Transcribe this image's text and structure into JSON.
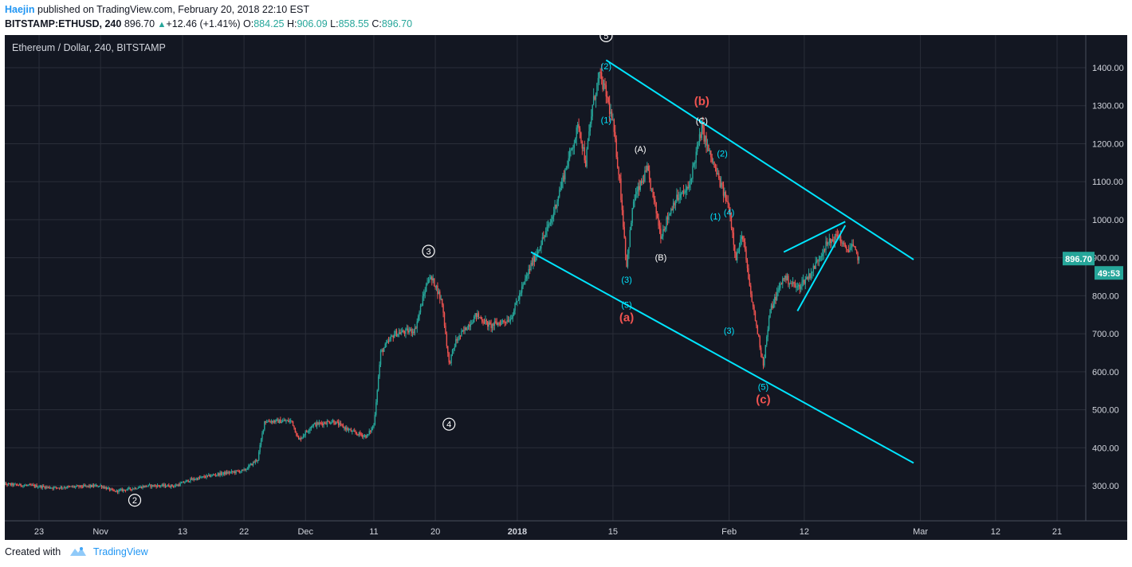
{
  "header": {
    "author": "Haejin",
    "published_text": "published on TradingView.com, February 20, 2018 22:10 EST",
    "symbol": "BITSTAMP:ETHUSD, 240",
    "last_price": "896.70",
    "change_arrow": "▲",
    "change": "+12.46 (+1.41%)",
    "ohlc": [
      {
        "key": "O:",
        "value": "884.25"
      },
      {
        "key": "H:",
        "value": "906.09"
      },
      {
        "key": "L:",
        "value": "858.55"
      },
      {
        "key": "C:",
        "value": "896.70"
      }
    ]
  },
  "footer": {
    "created_with": "Created with",
    "brand": "TradingView",
    "logo_icon": "tradingview-logo-icon"
  },
  "colors": {
    "background": "#131722",
    "grid": "#2a2e39",
    "up_candle": "#26a69a",
    "down_candle": "#ef5350",
    "trendline": "#00e5ff",
    "wave_label_red": "#ef5350",
    "wave_label_cyan": "#00e5ff",
    "wave_label_white": "#ffffff",
    "price_tag": "#26a69a"
  },
  "chart_data": {
    "type": "candlestick",
    "title": "Ethereum / Dollar, 240, BITSTAMP",
    "timeframe": "240",
    "x_ticks": [
      "23",
      "Nov",
      "13",
      "22",
      "Dec",
      "11",
      "20",
      "2018",
      "15",
      "Feb",
      "12",
      "Mar",
      "12",
      "21"
    ],
    "x_tick_dates": [
      "2017-10-23",
      "2017-11-01",
      "2017-11-13",
      "2017-11-22",
      "2017-12-01",
      "2017-12-11",
      "2017-12-20",
      "2018-01-01",
      "2018-01-15",
      "2018-02-01",
      "2018-02-12",
      "2018-03-01",
      "2018-03-12",
      "2018-03-21"
    ],
    "y_ticks": [
      "1400.00",
      "1300.00",
      "1200.00",
      "1100.00",
      "1000.00",
      "900.00",
      "800.00",
      "700.00",
      "600.00",
      "500.00",
      "400.00",
      "300.00"
    ],
    "ylim": [
      220,
      1430
    ],
    "grid": true,
    "last_price_label": "896.70",
    "countdown_label": "49:53",
    "price_path": [
      [
        "2017-10-17",
        305
      ],
      [
        "2017-10-22",
        300
      ],
      [
        "2017-10-25",
        295
      ],
      [
        "2017-11-01",
        300
      ],
      [
        "2017-11-03",
        285
      ],
      [
        "2017-11-08",
        300
      ],
      [
        "2017-11-12",
        300
      ],
      [
        "2017-11-14",
        315
      ],
      [
        "2017-11-18",
        330
      ],
      [
        "2017-11-22",
        340
      ],
      [
        "2017-11-24",
        370
      ],
      [
        "2017-11-25",
        470
      ],
      [
        "2017-11-29",
        470
      ],
      [
        "2017-11-30",
        420
      ],
      [
        "2017-12-02",
        460
      ],
      [
        "2017-12-05",
        470
      ],
      [
        "2017-12-08",
        440
      ],
      [
        "2017-12-10",
        430
      ],
      [
        "2017-12-11",
        460
      ],
      [
        "2017-12-12",
        650
      ],
      [
        "2017-12-14",
        700
      ],
      [
        "2017-12-17",
        710
      ],
      [
        "2017-12-19",
        850
      ],
      [
        "2017-12-20",
        830
      ],
      [
        "2017-12-21",
        780
      ],
      [
        "2017-12-22",
        620
      ],
      [
        "2017-12-23",
        680
      ],
      [
        "2017-12-26",
        750
      ],
      [
        "2017-12-28",
        720
      ],
      [
        "2017-12-31",
        740
      ],
      [
        "2018-01-03",
        880
      ],
      [
        "2018-01-06",
        1000
      ],
      [
        "2018-01-08",
        1130
      ],
      [
        "2018-01-10",
        1250
      ],
      [
        "2018-01-11",
        1150
      ],
      [
        "2018-01-12",
        1300
      ],
      [
        "2018-01-13",
        1380
      ],
      [
        "2018-01-14",
        1330
      ],
      [
        "2018-01-15",
        1250
      ],
      [
        "2018-01-16",
        1100
      ],
      [
        "2018-01-17",
        880
      ],
      [
        "2018-01-18",
        1050
      ],
      [
        "2018-01-20",
        1130
      ],
      [
        "2018-01-21",
        1050
      ],
      [
        "2018-01-22",
        960
      ],
      [
        "2018-01-24",
        1050
      ],
      [
        "2018-01-26",
        1080
      ],
      [
        "2018-01-28",
        1240
      ],
      [
        "2018-01-29",
        1180
      ],
      [
        "2018-01-30",
        1130
      ],
      [
        "2018-01-31",
        1080
      ],
      [
        "2018-02-01",
        1030
      ],
      [
        "2018-02-02",
        900
      ],
      [
        "2018-02-03",
        960
      ],
      [
        "2018-02-04",
        820
      ],
      [
        "2018-02-05",
        720
      ],
      [
        "2018-02-06",
        620
      ],
      [
        "2018-02-07",
        760
      ],
      [
        "2018-02-09",
        850
      ],
      [
        "2018-02-11",
        820
      ],
      [
        "2018-02-13",
        860
      ],
      [
        "2018-02-15",
        930
      ],
      [
        "2018-02-17",
        960
      ],
      [
        "2018-02-18",
        920
      ],
      [
        "2018-02-19",
        930
      ],
      [
        "2018-02-20",
        896.7
      ]
    ],
    "trendlines": [
      {
        "name": "upper-channel",
        "from": [
          "2018-01-14",
          1420
        ],
        "to": [
          "2018-02-28",
          895
        ]
      },
      {
        "name": "lower-channel",
        "from": [
          "2018-01-03",
          915
        ],
        "to": [
          "2018-02-28",
          360
        ]
      },
      {
        "name": "wedge-top",
        "from": [
          "2018-02-09",
          915
        ],
        "to": [
          "2018-02-18",
          995
        ]
      },
      {
        "name": "wedge-bottom",
        "from": [
          "2018-02-11",
          760
        ],
        "to": [
          "2018-02-18",
          985
        ]
      }
    ],
    "wave_labels": [
      {
        "text": "2",
        "style": "circled",
        "at": [
          "2017-11-06",
          262
        ]
      },
      {
        "text": "3",
        "style": "circled",
        "at": [
          "2017-12-19",
          917
        ]
      },
      {
        "text": "4",
        "style": "circled",
        "at": [
          "2017-12-22",
          462
        ]
      },
      {
        "text": "5",
        "style": "circled",
        "at": [
          "2018-01-14",
          1484
        ]
      },
      {
        "text": "(2)",
        "style": "cyan",
        "at": [
          "2018-01-14",
          1403
        ]
      },
      {
        "text": "(1)",
        "style": "cyan",
        "at": [
          "2018-01-14",
          1262
        ]
      },
      {
        "text": "(3)",
        "style": "cyan",
        "at": [
          "2018-01-17",
          842
        ]
      },
      {
        "text": "(5)",
        "style": "cyan",
        "at": [
          "2018-01-17",
          776
        ]
      },
      {
        "text": "(a)",
        "style": "red",
        "at": [
          "2018-01-17",
          743
        ]
      },
      {
        "text": "(A)",
        "style": "white",
        "at": [
          "2018-01-19",
          1186
        ]
      },
      {
        "text": "(B)",
        "style": "white",
        "at": [
          "2018-01-22",
          901
        ]
      },
      {
        "text": "(b)",
        "style": "red",
        "at": [
          "2018-01-28",
          1312
        ]
      },
      {
        "text": "(C)",
        "style": "white",
        "at": [
          "2018-01-28",
          1260
        ]
      },
      {
        "text": "(2)",
        "style": "cyan",
        "at": [
          "2018-01-31",
          1174
        ]
      },
      {
        "text": "(1)",
        "style": "cyan",
        "at": [
          "2018-01-30",
          1009
        ]
      },
      {
        "text": "(4)",
        "style": "cyan",
        "at": [
          "2018-02-01",
          1019
        ]
      },
      {
        "text": "(3)",
        "style": "cyan",
        "at": [
          "2018-02-01",
          708
        ]
      },
      {
        "text": "(5)",
        "style": "cyan",
        "at": [
          "2018-02-06",
          560
        ]
      },
      {
        "text": "(c)",
        "style": "red",
        "at": [
          "2018-02-06",
          527
        ]
      }
    ]
  }
}
